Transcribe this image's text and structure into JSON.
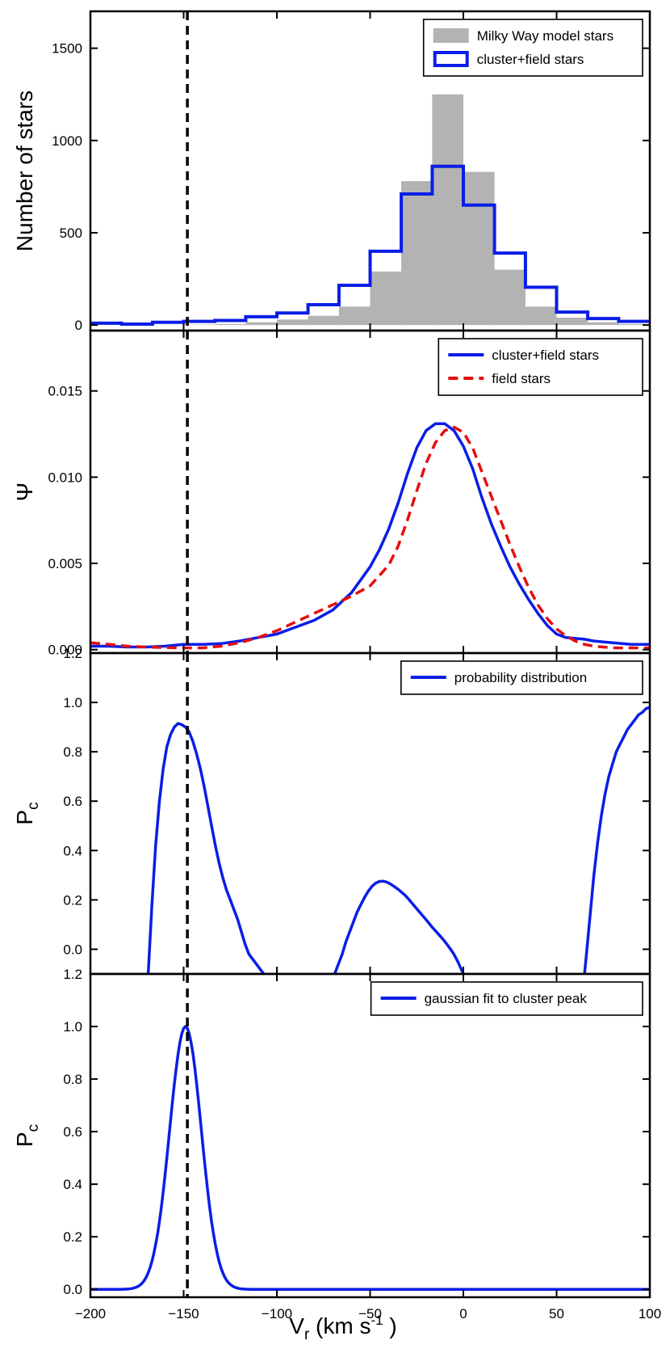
{
  "chart_data": {
    "shared_x": {
      "label_main": "V",
      "label_sub": "r",
      "label_unit_pre": " (km s",
      "label_unit_sup": "-1",
      "label_unit_post": " )",
      "ticks": [
        -200,
        -150,
        -100,
        -50,
        0,
        50,
        100
      ],
      "tick_labels": [
        "−200",
        "−150",
        "−100",
        "−50",
        "0",
        "50",
        "100"
      ],
      "range": [
        -200,
        100
      ],
      "dashed_line_at": -148
    },
    "panels": [
      {
        "type": "bar",
        "ylabel": "Number of stars",
        "ylim": [
          -30,
          1700
        ],
        "yticks": [
          0,
          500,
          1000,
          1500
        ],
        "ytick_labels": [
          "0",
          "500",
          "1000",
          "1500"
        ],
        "bin_edges": [
          -200,
          -183.3,
          -166.7,
          -150,
          -133.3,
          -116.7,
          -100,
          -83.3,
          -66.7,
          -50,
          -33.3,
          -16.7,
          0,
          16.7,
          33.3,
          50,
          66.7,
          83.3,
          100
        ],
        "series": [
          {
            "name": "Milky Way model stars",
            "kind": "filled",
            "color": "#b3b3b3",
            "values": [
              0,
              0,
              0,
              2,
              5,
              15,
              30,
              50,
              100,
              290,
              780,
              1250,
              830,
              300,
              100,
              40,
              15,
              5
            ]
          },
          {
            "name": "cluster+field stars",
            "kind": "step",
            "color": "#0a1ee6",
            "values": [
              10,
              5,
              15,
              20,
              25,
              45,
              65,
              110,
              215,
              400,
              710,
              860,
              650,
              390,
              205,
              70,
              35,
              20
            ]
          }
        ],
        "legend": [
          "Milky Way model stars",
          "cluster+field stars"
        ],
        "legend_position": "top-right"
      },
      {
        "type": "line",
        "ylabel": "Ψ",
        "ylim": [
          -0.0002,
          0.0185
        ],
        "yticks": [
          0,
          0.005,
          0.01,
          0.015
        ],
        "ytick_labels": [
          "0.000",
          "0.005",
          "0.010",
          "0.015"
        ],
        "series": [
          {
            "name": "cluster+field stars",
            "style": "solid",
            "color": "#0a1ee6",
            "x": [
              -200,
              -190,
              -180,
              -170,
              -160,
              -150,
              -140,
              -130,
              -120,
              -110,
              -100,
              -90,
              -80,
              -70,
              -60,
              -50,
              -45,
              -40,
              -35,
              -30,
              -25,
              -20,
              -15,
              -10,
              -5,
              0,
              5,
              10,
              15,
              20,
              25,
              30,
              35,
              40,
              45,
              50,
              55,
              60,
              65,
              70,
              80,
              90,
              100
            ],
            "y": [
              0.0002,
              0.0002,
              0.00015,
              0.00015,
              0.0002,
              0.0003,
              0.0003,
              0.00035,
              0.0005,
              0.0007,
              0.0009,
              0.0013,
              0.0017,
              0.0023,
              0.0033,
              0.0048,
              0.0058,
              0.007,
              0.0085,
              0.0102,
              0.0117,
              0.0127,
              0.0131,
              0.0131,
              0.0127,
              0.0118,
              0.0105,
              0.0088,
              0.0073,
              0.006,
              0.0048,
              0.0038,
              0.0029,
              0.0021,
              0.0014,
              0.0009,
              0.0007,
              0.00065,
              0.0006,
              0.0005,
              0.0004,
              0.0003,
              0.0003
            ]
          },
          {
            "name": "field stars",
            "style": "dashed",
            "color": "#e60f0f",
            "x": [
              -200,
              -190,
              -180,
              -170,
              -160,
              -150,
              -140,
              -130,
              -120,
              -110,
              -100,
              -90,
              -80,
              -70,
              -60,
              -50,
              -40,
              -35,
              -30,
              -25,
              -20,
              -15,
              -10,
              -5,
              0,
              5,
              10,
              15,
              20,
              25,
              30,
              35,
              40,
              45,
              50,
              55,
              60,
              65,
              70,
              80,
              90,
              100
            ],
            "y": [
              0.0004,
              0.0003,
              0.0002,
              0.00015,
              0.00012,
              0.0001,
              0.0001,
              0.0002,
              0.0004,
              0.0007,
              0.0011,
              0.0016,
              0.0021,
              0.0026,
              0.0031,
              0.0037,
              0.0049,
              0.006,
              0.0075,
              0.0092,
              0.0108,
              0.012,
              0.0127,
              0.0129,
              0.0126,
              0.0117,
              0.0103,
              0.0089,
              0.0075,
              0.0061,
              0.0048,
              0.0036,
              0.0026,
              0.0018,
              0.0012,
              0.0008,
              0.0005,
              0.0003,
              0.0002,
              0.0001,
              0.0001,
              0.0001
            ]
          }
        ],
        "legend": [
          "cluster+field stars",
          "field stars"
        ],
        "legend_position": "top-right"
      },
      {
        "type": "line",
        "ylabel_main": "P",
        "ylabel_sub": "c",
        "ylim": [
          -0.1,
          1.2
        ],
        "yticks": [
          0,
          0.2,
          0.4,
          0.6,
          0.8,
          1.0,
          1.2
        ],
        "ytick_labels": [
          "0.0",
          "0.2",
          "0.4",
          "0.6",
          "0.8",
          "1.0",
          "1.2"
        ],
        "series": [
          {
            "name": "probability distribution",
            "style": "solid",
            "color": "#0a1ee6",
            "segments": [
              {
                "x": [
                  -169,
                  -167,
                  -165,
                  -163,
                  -161,
                  -159,
                  -157,
                  -155,
                  -153,
                  -151,
                  -149,
                  -147,
                  -145,
                  -143,
                  -141,
                  -139,
                  -137,
                  -135,
                  -133,
                  -131,
                  -129,
                  -127,
                  -125,
                  -123,
                  -121,
                  -119,
                  -117,
                  -115,
                  -113,
                  -111,
                  -109,
                  -107
                ],
                "y": [
                  -0.1,
                  0.18,
                  0.42,
                  0.6,
                  0.73,
                  0.82,
                  0.87,
                  0.9,
                  0.915,
                  0.91,
                  0.9,
                  0.88,
                  0.84,
                  0.79,
                  0.73,
                  0.66,
                  0.58,
                  0.5,
                  0.42,
                  0.35,
                  0.29,
                  0.24,
                  0.2,
                  0.16,
                  0.12,
                  0.07,
                  0.02,
                  -0.02,
                  -0.04,
                  -0.06,
                  -0.08,
                  -0.1
                ]
              },
              {
                "x": [
                  -69,
                  -67,
                  -65,
                  -63,
                  -61,
                  -59,
                  -57,
                  -55,
                  -53,
                  -51,
                  -49,
                  -47,
                  -45,
                  -43,
                  -41,
                  -39,
                  -37,
                  -35,
                  -33,
                  -31,
                  -29,
                  -27,
                  -25,
                  -23,
                  -21,
                  -19,
                  -17,
                  -15,
                  -13,
                  -11,
                  -9,
                  -7,
                  -5,
                  -3,
                  -1,
                  0
                ],
                "y": [
                  -0.1,
                  -0.06,
                  -0.02,
                  0.03,
                  0.07,
                  0.11,
                  0.15,
                  0.18,
                  0.21,
                  0.235,
                  0.255,
                  0.268,
                  0.275,
                  0.276,
                  0.272,
                  0.264,
                  0.254,
                  0.243,
                  0.23,
                  0.217,
                  0.2,
                  0.182,
                  0.164,
                  0.146,
                  0.129,
                  0.111,
                  0.092,
                  0.075,
                  0.058,
                  0.041,
                  0.022,
                  0.002,
                  -0.021,
                  -0.05,
                  -0.083,
                  -0.1
                ]
              },
              {
                "x": [
                  65,
                  66,
                  67,
                  68,
                  69,
                  70,
                  72,
                  74,
                  76,
                  78,
                  80,
                  82,
                  84,
                  86,
                  88,
                  90,
                  92,
                  94,
                  96,
                  98,
                  100
                ],
                "y": [
                  -0.1,
                  -0.02,
                  0.06,
                  0.14,
                  0.22,
                  0.3,
                  0.43,
                  0.54,
                  0.63,
                  0.7,
                  0.75,
                  0.8,
                  0.83,
                  0.86,
                  0.89,
                  0.91,
                  0.93,
                  0.95,
                  0.96,
                  0.975,
                  0.98
                ]
              }
            ]
          }
        ],
        "legend": [
          "probability distribution"
        ],
        "legend_position": "top-right"
      },
      {
        "type": "line",
        "ylabel_main": "P",
        "ylabel_sub": "c",
        "ylim": [
          -0.03,
          1.2
        ],
        "yticks": [
          0,
          0.2,
          0.4,
          0.6,
          0.8,
          1.0,
          1.2
        ],
        "ytick_labels": [
          "0.0",
          "0.2",
          "0.4",
          "0.6",
          "0.8",
          "1.0",
          "1.2"
        ],
        "series": [
          {
            "name": "gaussian fit to cluster peak",
            "style": "solid",
            "color": "#0a1ee6",
            "gaussian": {
              "mu": -149,
              "sigma": 8.5,
              "amplitude": 1.0
            }
          }
        ],
        "legend": [
          "gaussian fit to cluster peak"
        ],
        "legend_position": "top-right"
      }
    ]
  }
}
